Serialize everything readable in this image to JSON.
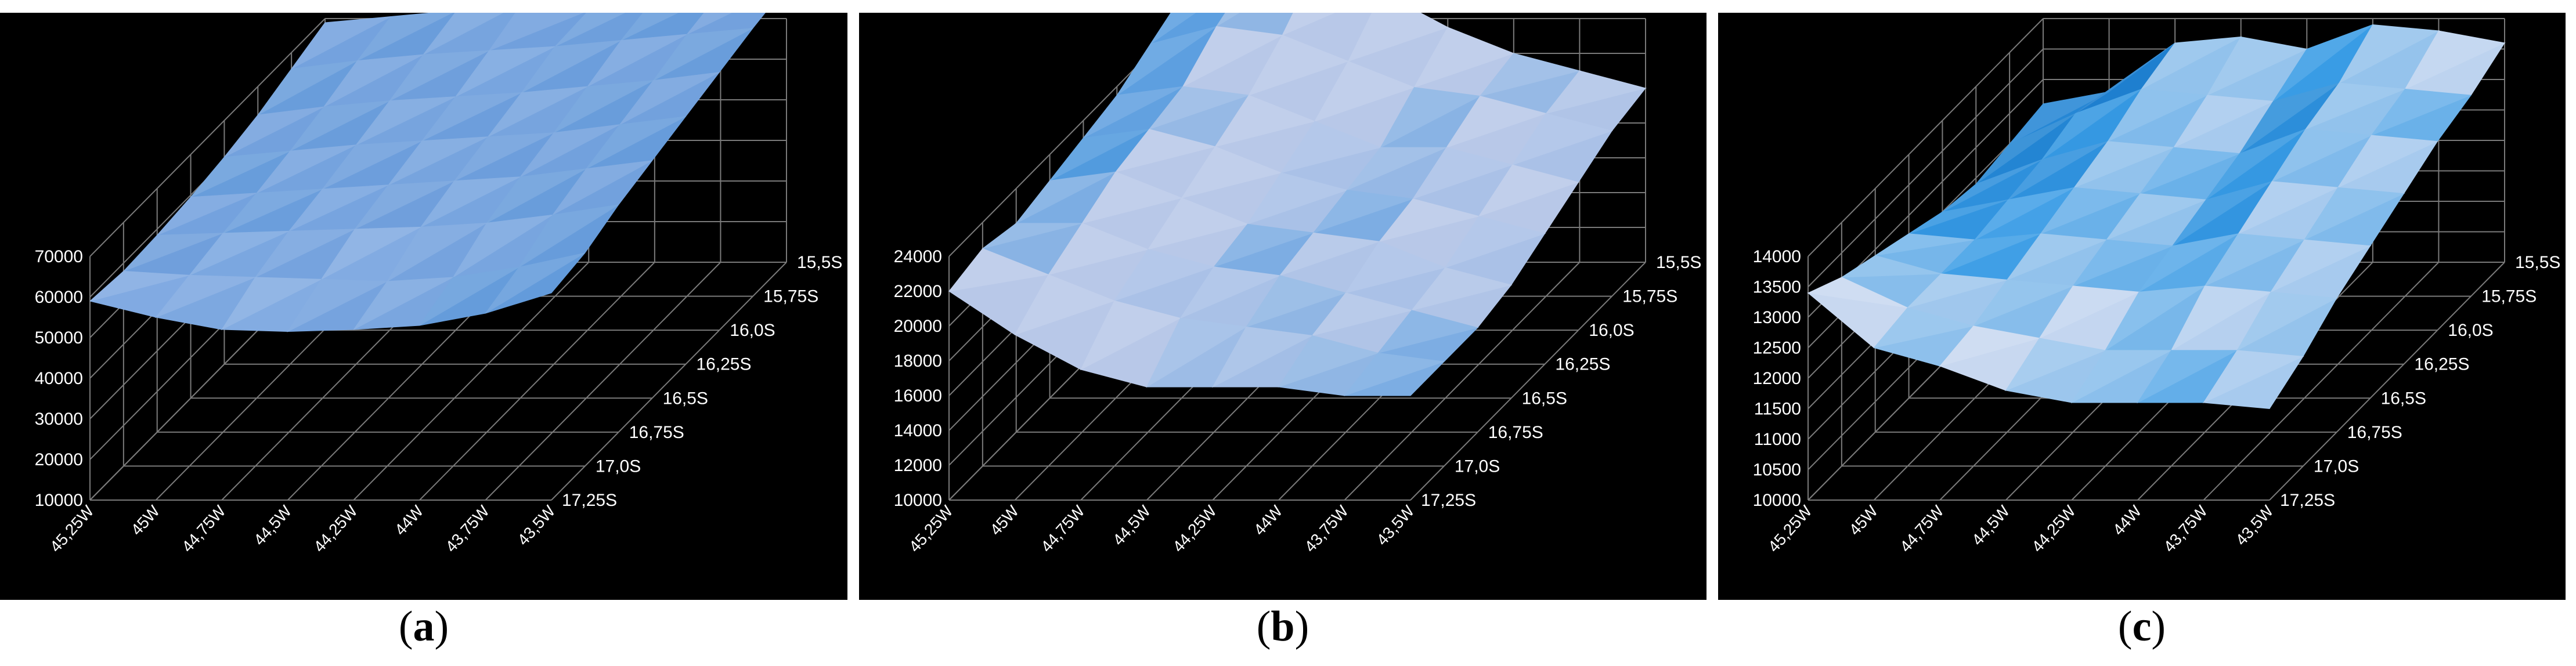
{
  "chart_data": [
    {
      "type": "surface",
      "panel_label": "a",
      "x_categories": [
        "45,25W",
        "45W",
        "44,75W",
        "44,5W",
        "44,25W",
        "44W",
        "43,75W",
        "43,5W"
      ],
      "y_categories": [
        "15,5S",
        "15,75S",
        "16,0S",
        "16,25S",
        "16,5S",
        "16,75S",
        "17,0S",
        "17,25S"
      ],
      "z_ticks": [
        10000,
        20000,
        30000,
        40000,
        50000,
        60000,
        70000
      ],
      "zlim": [
        10000,
        70000
      ],
      "grid": true,
      "background": "#000000",
      "surface_colors": [
        "#8fb3e6",
        "#6f9fdc",
        "#3f8fd6"
      ],
      "z": [
        [
          69000,
          70500,
          72000,
          74000,
          72000,
          75000,
          76500,
          78000
        ],
        [
          66000,
          68000,
          69500,
          70500,
          71500,
          73000,
          74500,
          76000
        ],
        [
          63000,
          65000,
          66500,
          67500,
          68500,
          70000,
          71500,
          73500
        ],
        [
          61000,
          62500,
          64000,
          65000,
          66000,
          67000,
          69000,
          71000
        ],
        [
          59500,
          60500,
          61500,
          62500,
          63500,
          64500,
          66500,
          68500
        ],
        [
          58500,
          59000,
          59500,
          60000,
          60500,
          61500,
          63500,
          66000
        ],
        [
          58000,
          57000,
          56500,
          56000,
          55500,
          56500,
          59000,
          62500
        ],
        [
          59000,
          55000,
          52000,
          51500,
          52000,
          53000,
          56000,
          61000
        ]
      ]
    },
    {
      "type": "surface",
      "panel_label": "b",
      "x_categories": [
        "45,25W",
        "45W",
        "44,75W",
        "44,5W",
        "44,25W",
        "44W",
        "43,75W",
        "43,5W"
      ],
      "y_categories": [
        "15,5S",
        "15,75S",
        "16,0S",
        "16,25S",
        "16,5S",
        "16,75S",
        "17,0S",
        "17,25S"
      ],
      "z_ticks": [
        10000,
        12000,
        14000,
        16000,
        18000,
        20000,
        22000,
        24000
      ],
      "zlim": [
        10000,
        24000
      ],
      "grid": true,
      "background": "#000000",
      "surface_colors": [
        "#b8c8e8",
        "#5e9fe0",
        "#2a8fd8"
      ],
      "z": [
        [
          25500,
          26500,
          27000,
          25500,
          23500,
          22000,
          21000,
          20000
        ],
        [
          24500,
          25500,
          25000,
          23500,
          22000,
          21500,
          20500,
          19500
        ],
        [
          23500,
          24000,
          23500,
          22000,
          20500,
          20500,
          19500,
          18500
        ],
        [
          23000,
          23500,
          22500,
          21000,
          20000,
          19500,
          18500,
          17500
        ],
        [
          22500,
          23000,
          21500,
          20000,
          19500,
          19000,
          17500,
          16500
        ],
        [
          22000,
          22000,
          20500,
          19500,
          19000,
          18000,
          17000,
          16000
        ],
        [
          22500,
          21000,
          19500,
          18500,
          18000,
          17500,
          16500,
          16000
        ],
        [
          22000,
          19500,
          17500,
          16500,
          16500,
          16500,
          16000,
          16000
        ]
      ]
    },
    {
      "type": "surface",
      "panel_label": "c",
      "x_categories": [
        "45,25W",
        "45W",
        "44,75W",
        "44,5W",
        "44,25W",
        "44W",
        "43,75W",
        "43,5W"
      ],
      "y_categories": [
        "15,5S",
        "15,75S",
        "16,0S",
        "16,25S",
        "16,5S",
        "16,75S",
        "17,0S",
        "17,25S"
      ],
      "z_ticks": [
        10000,
        10500,
        11000,
        11500,
        12000,
        12500,
        13000,
        13500,
        14000
      ],
      "zlim": [
        10000,
        14000
      ],
      "grid": true,
      "background": "#000000",
      "surface_colors": [
        "#c8d8f0",
        "#3a9de6",
        "#1e7fcf"
      ],
      "z": [
        [
          12600,
          12800,
          13600,
          13700,
          13500,
          13900,
          13800,
          13600
        ],
        [
          12500,
          13000,
          13400,
          13300,
          13200,
          13500,
          13400,
          13300
        ],
        [
          12400,
          12800,
          13100,
          13000,
          12900,
          13300,
          13200,
          13100
        ],
        [
          12500,
          12700,
          12900,
          12800,
          12700,
          13000,
          12900,
          12800
        ],
        [
          12700,
          12600,
          12700,
          12600,
          12500,
          12700,
          12600,
          12500
        ],
        [
          12900,
          12600,
          12500,
          12400,
          12300,
          12400,
          12300,
          12200
        ],
        [
          13100,
          12600,
          12300,
          12100,
          11900,
          11900,
          11900,
          11800
        ],
        [
          13400,
          12500,
          12200,
          11800,
          11600,
          11600,
          11600,
          11500
        ]
      ]
    }
  ],
  "captions": [
    "a",
    "b",
    "c"
  ]
}
